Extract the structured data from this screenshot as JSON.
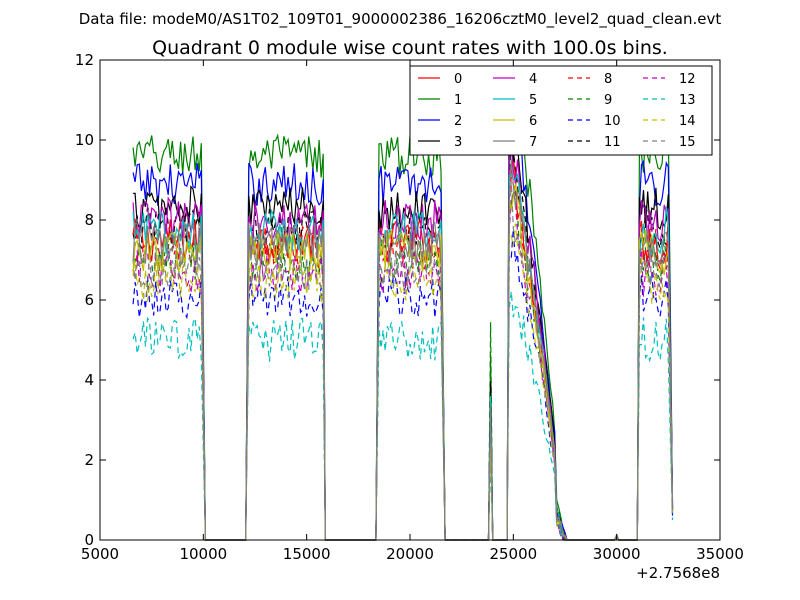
{
  "chart_data": {
    "type": "line",
    "suptitle": "Data file: modeM0/AS1T02_109T01_9000002386_16206cztM0_level2_quad_clean.evt",
    "title": "Quadrant 0 module wise count rates with 100.0s bins.",
    "xlabel": "",
    "ylabel": "",
    "x_offset_label": "+2.7568e8",
    "xlim": [
      5000,
      35000
    ],
    "ylim": [
      0,
      12
    ],
    "xticks": [
      "5000",
      "10000",
      "15000",
      "20000",
      "25000",
      "30000",
      "35000"
    ],
    "yticks": [
      "0",
      "2",
      "4",
      "6",
      "8",
      "10",
      "12"
    ],
    "legend_position": "top-right",
    "legend_columns": 4,
    "segments": [
      {
        "start": 6600,
        "end": 9900,
        "drop_to": 10100
      },
      {
        "start": 12200,
        "end": 15800,
        "drop_to": 15900
      },
      {
        "start": 18500,
        "end": 21500,
        "drop_to": 21700
      }
    ],
    "series": [
      {
        "name": "0",
        "color": "#ff0000",
        "style": "solid",
        "level": 7.5
      },
      {
        "name": "1",
        "color": "#008000",
        "style": "solid",
        "level": 9.6
      },
      {
        "name": "2",
        "color": "#0000ff",
        "style": "solid",
        "level": 8.9
      },
      {
        "name": "3",
        "color": "#000000",
        "style": "solid",
        "level": 8.3
      },
      {
        "name": "4",
        "color": "#bf00bf",
        "style": "solid",
        "level": 8.0
      },
      {
        "name": "5",
        "color": "#00bfbf",
        "style": "solid",
        "level": 7.7
      },
      {
        "name": "6",
        "color": "#bfbf00",
        "style": "solid",
        "level": 7.2
      },
      {
        "name": "7",
        "color": "#808080",
        "style": "solid",
        "level": 7.4
      },
      {
        "name": "8",
        "color": "#ff0000",
        "style": "dashed",
        "level": 7.3
      },
      {
        "name": "9",
        "color": "#008000",
        "style": "dashed",
        "level": 7.0
      },
      {
        "name": "10",
        "color": "#0000ff",
        "style": "dashed",
        "level": 6.1
      },
      {
        "name": "11",
        "color": "#000000",
        "style": "dashed",
        "level": 7.8
      },
      {
        "name": "12",
        "color": "#bf00bf",
        "style": "dashed",
        "level": 6.7
      },
      {
        "name": "13",
        "color": "#00bfbf",
        "style": "dashed",
        "level": 5.0
      },
      {
        "name": "14",
        "color": "#bfbf00",
        "style": "dashed",
        "level": 6.5
      },
      {
        "name": "15",
        "color": "#808080",
        "style": "dashed",
        "level": 6.8
      }
    ]
  }
}
